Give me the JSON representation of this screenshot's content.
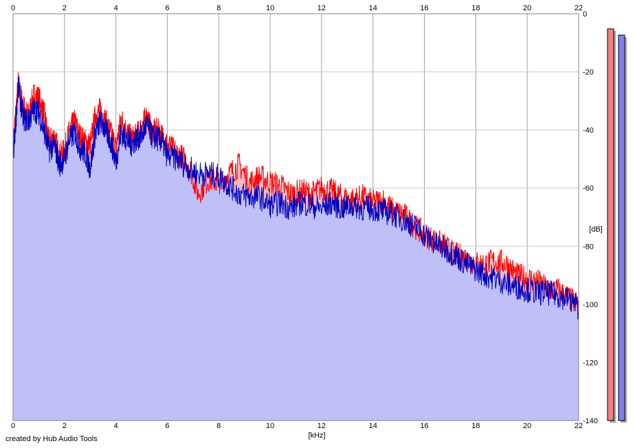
{
  "credit_text": "created by Hub Audio Tools",
  "chart_data": {
    "type": "area",
    "title": "",
    "xlabel": "[kHz]",
    "ylabel": "[dB]",
    "xlim": [
      0,
      22
    ],
    "ylim": [
      -140,
      0
    ],
    "x_ticks": [
      0,
      2,
      4,
      6,
      8,
      10,
      12,
      14,
      16,
      18,
      20,
      22
    ],
    "y_ticks": [
      0,
      -20,
      -40,
      -60,
      -80,
      -100,
      -120,
      -140
    ],
    "grid": true,
    "series": [
      {
        "color": "#ff0000",
        "fill": "#f2b8c4",
        "x": [
          0,
          0.2,
          0.4,
          0.6,
          0.8,
          1.0,
          1.2,
          1.4,
          1.6,
          1.8,
          2.0,
          2.2,
          2.4,
          2.6,
          2.8,
          3.0,
          3.2,
          3.4,
          3.6,
          3.8,
          4.0,
          4.2,
          4.4,
          4.6,
          4.8,
          5.0,
          5.2,
          5.4,
          5.6,
          5.8,
          6.0,
          6.4,
          6.8,
          7.2,
          7.6,
          8.0,
          8.4,
          8.8,
          9.2,
          9.6,
          10.0,
          10.4,
          10.8,
          11.2,
          11.6,
          12.0,
          12.4,
          12.8,
          13.2,
          13.6,
          14.0,
          14.4,
          14.8,
          15.2,
          15.6,
          16.0,
          16.4,
          16.8,
          17.2,
          17.6,
          18.0,
          18.4,
          18.8,
          19.2,
          19.6,
          20.0,
          20.4,
          20.8,
          21.2,
          21.6,
          22.0
        ],
        "values": [
          -45,
          -24,
          -32,
          -35,
          -28,
          -29,
          -34,
          -44,
          -42,
          -49,
          -47,
          -40,
          -37,
          -42,
          -44,
          -45,
          -35,
          -33,
          -37,
          -41,
          -46,
          -36,
          -40,
          -43,
          -42,
          -39,
          -35,
          -41,
          -40,
          -42,
          -45,
          -48,
          -51,
          -62,
          -57,
          -58,
          -55,
          -52,
          -58,
          -56,
          -58,
          -59,
          -62,
          -61,
          -62,
          -60,
          -61,
          -63,
          -64,
          -63,
          -65,
          -64,
          -68,
          -69,
          -73,
          -76,
          -78,
          -80,
          -83,
          -84,
          -86,
          -86,
          -85,
          -86,
          -90,
          -91,
          -92,
          -95,
          -95,
          -98,
          -100
        ]
      },
      {
        "color": "#0000c0",
        "fill": "#c0c0f8",
        "x": [
          0,
          0.2,
          0.4,
          0.6,
          0.8,
          1.0,
          1.2,
          1.4,
          1.6,
          1.8,
          2.0,
          2.2,
          2.4,
          2.6,
          2.8,
          3.0,
          3.2,
          3.4,
          3.6,
          3.8,
          4.0,
          4.2,
          4.4,
          4.6,
          4.8,
          5.0,
          5.2,
          5.4,
          5.6,
          5.8,
          6.0,
          6.4,
          6.8,
          7.2,
          7.6,
          8.0,
          8.4,
          8.8,
          9.2,
          9.6,
          10.0,
          10.4,
          10.8,
          11.2,
          11.6,
          12.0,
          12.4,
          12.8,
          13.2,
          13.6,
          14.0,
          14.4,
          14.8,
          15.2,
          15.6,
          16.0,
          16.4,
          16.8,
          17.2,
          17.6,
          18.0,
          18.4,
          18.8,
          19.2,
          19.6,
          20.0,
          20.4,
          20.8,
          21.2,
          21.6,
          22.0
        ],
        "values": [
          -50,
          -25,
          -36,
          -37,
          -33,
          -34,
          -40,
          -47,
          -45,
          -52,
          -50,
          -43,
          -41,
          -46,
          -48,
          -53,
          -41,
          -37,
          -40,
          -44,
          -51,
          -41,
          -43,
          -45,
          -43,
          -42,
          -38,
          -42,
          -43,
          -44,
          -49,
          -50,
          -53,
          -55,
          -55,
          -56,
          -59,
          -62,
          -63,
          -63,
          -66,
          -65,
          -67,
          -65,
          -66,
          -67,
          -65,
          -67,
          -66,
          -67,
          -67,
          -68,
          -69,
          -71,
          -73,
          -76,
          -79,
          -81,
          -83,
          -86,
          -88,
          -90,
          -91,
          -93,
          -94,
          -95,
          -96,
          -96,
          -97,
          -98,
          -101
        ]
      }
    ],
    "level_meters": [
      {
        "color": "#f08080",
        "level": 1.0
      },
      {
        "color": "#8080f0",
        "level": 1.0
      }
    ]
  }
}
